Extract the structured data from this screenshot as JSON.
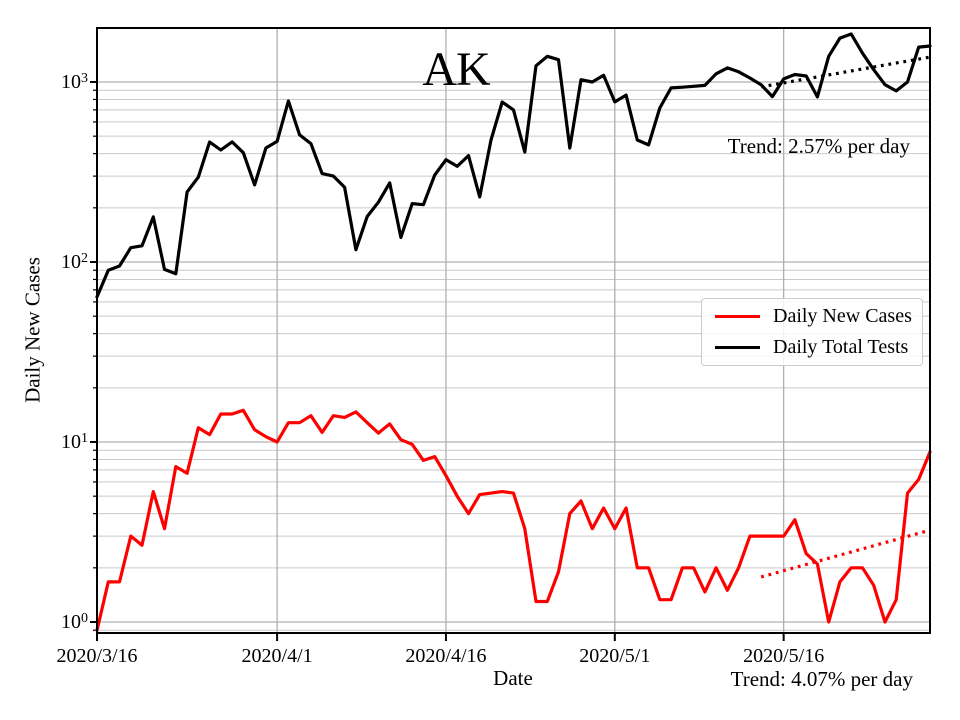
{
  "title": "AK",
  "axes": {
    "x_label": "Date",
    "y_label": "Daily New Cases",
    "x_ticks": [
      {
        "day": 0,
        "label": "2020/3/16"
      },
      {
        "day": 16,
        "label": "2020/4/1"
      },
      {
        "day": 31,
        "label": "2020/4/16"
      },
      {
        "day": 46,
        "label": "2020/5/1"
      },
      {
        "day": 61,
        "label": "2020/5/16"
      }
    ],
    "y_ticks": [
      {
        "value": 1,
        "base": "10",
        "exp": "0"
      },
      {
        "value": 10,
        "base": "10",
        "exp": "1"
      },
      {
        "value": 100,
        "base": "10",
        "exp": "2"
      },
      {
        "value": 1000,
        "base": "10",
        "exp": "3"
      }
    ]
  },
  "annotations": {
    "tests_trend": "Trend: 2.57% per day",
    "cases_trend": "Trend: 4.07% per day"
  },
  "legend": [
    {
      "label": "Daily New Cases",
      "color": "#ff0000"
    },
    {
      "label": "Daily Total Tests",
      "color": "#000000"
    }
  ],
  "colors": {
    "cases": "#ff0000",
    "tests": "#000000",
    "grid_major": "#b0b0b0",
    "grid_minor": "#c9c9c9",
    "spine": "#000000",
    "legend_border": "#cccccc",
    "text": "#000000"
  },
  "chart_data": {
    "type": "line",
    "title": "AK",
    "xlabel": "Date",
    "ylabel": "Daily New Cases",
    "yscale": "log",
    "ylim": [
      0.87,
      1995
    ],
    "x_unit": "days since 2020/3/16",
    "xlim_days": [
      0,
      74
    ],
    "x_tick_days": [
      0,
      16,
      31,
      46,
      61
    ],
    "x_tick_labels": [
      "2020/3/16",
      "2020/4/1",
      "2020/4/16",
      "2020/5/1",
      "2020/5/16"
    ],
    "grid": {
      "major": true,
      "minor_y": true,
      "legend_position": "center-right"
    },
    "series": [
      {
        "name": "Daily New Cases",
        "color": "#ff0000",
        "style": "solid",
        "values": [
          0.9,
          1.67,
          1.67,
          3.0,
          2.67,
          5.3,
          3.3,
          7.3,
          6.7,
          12.0,
          11.0,
          14.3,
          14.3,
          15.0,
          11.7,
          10.7,
          10.0,
          12.8,
          12.8,
          14.0,
          11.3,
          14.0,
          13.7,
          14.7,
          12.8,
          11.2,
          12.6,
          10.3,
          9.7,
          7.9,
          8.3,
          6.5,
          5.0,
          4.0,
          5.1,
          5.2,
          5.3,
          5.2,
          3.3,
          1.3,
          1.3,
          1.9,
          4.0,
          4.7,
          3.3,
          4.3,
          3.3,
          4.3,
          2.0,
          2.0,
          1.33,
          1.33,
          2.0,
          2.0,
          1.47,
          2.0,
          1.5,
          2.0,
          3.0,
          3.0,
          3.0,
          3.0,
          3.7,
          2.4,
          2.1,
          1.0,
          1.67,
          2.0,
          2.0,
          1.6,
          1.0,
          1.33,
          5.2,
          6.2,
          8.8
        ]
      },
      {
        "name": "Daily Total Tests",
        "color": "#000000",
        "style": "solid",
        "values": [
          64,
          90,
          95,
          120,
          123,
          178,
          91,
          86,
          245,
          296,
          464,
          419,
          465,
          405,
          268,
          430,
          468,
          784,
          508,
          455,
          310,
          300,
          260,
          117,
          179,
          215,
          275,
          137,
          211,
          208,
          304,
          370,
          340,
          390,
          230,
          476,
          774,
          700,
          408,
          1230,
          1390,
          1330,
          430,
          1030,
          1000,
          1090,
          775,
          846,
          476,
          447,
          717,
          927,
          936,
          946,
          958,
          1110,
          1198,
          1139,
          1052,
          966,
          830,
          1040,
          1100,
          1080,
          826,
          1390,
          1754,
          1849,
          1445,
          1170,
          966,
          892,
          1000,
          1563,
          1585
        ]
      },
      {
        "name": "Daily Total Tests Trend",
        "color": "#000000",
        "style": "dotted",
        "day_range": [
          59,
          74
        ],
        "start_value": 940,
        "pct_per_day": 2.57
      },
      {
        "name": "Daily New Cases Trend",
        "color": "#ff0000",
        "style": "dotted",
        "day_range": [
          59,
          74
        ],
        "start_value": 1.78,
        "pct_per_day": 4.07
      }
    ],
    "annotations": [
      {
        "text": "Trend: 2.57% per day",
        "refers_to": "Daily Total Tests"
      },
      {
        "text": "Trend: 4.07% per day",
        "refers_to": "Daily New Cases"
      }
    ]
  }
}
